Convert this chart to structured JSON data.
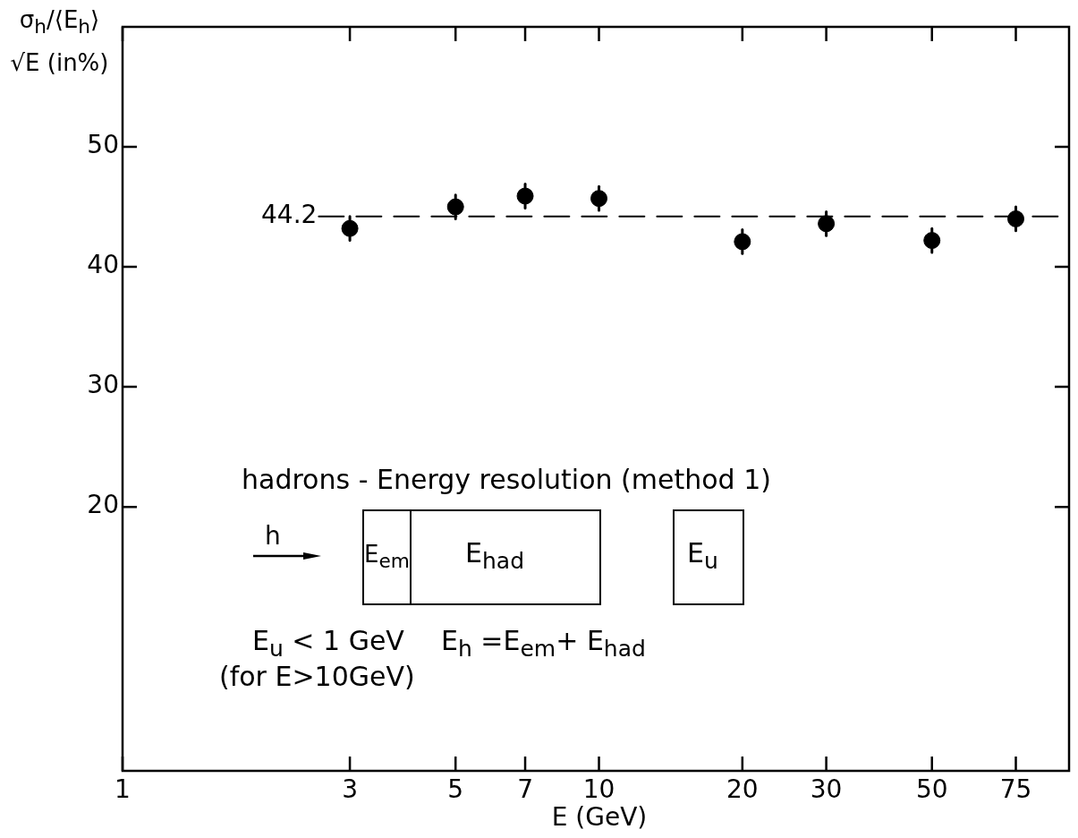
{
  "chart_data": {
    "type": "scatter",
    "xlabel": "E (GeV)",
    "ylabel": "σ$_{h}$/⟨E$_{h}$⟩ √E (in%)",
    "x": [
      3,
      5,
      7,
      10,
      20,
      30,
      50,
      75
    ],
    "values": [
      43.2,
      45.0,
      45.9,
      45.7,
      42.1,
      43.6,
      42.2,
      44.0
    ],
    "errors": [
      1,
      1,
      1,
      1,
      1,
      1,
      1,
      1
    ],
    "color": "#000000",
    "marker": "circle",
    "log": "x",
    "xlim": [
      1,
      97
    ],
    "xticks": [
      1,
      3,
      5,
      7,
      10,
      20,
      30,
      50,
      75
    ],
    "ylim": [
      -2,
      60
    ],
    "yticks": [
      20,
      30,
      40,
      50
    ],
    "ref_lines": [
      {
        "axis": "y",
        "value": 44.2,
        "label": "44.2",
        "line_style": "dashed",
        "color": "#000000"
      }
    ],
    "annotations": [
      "hadrons - Energy resolution (method 1)",
      "h",
      "E$_{em}$",
      "E$_{had}$",
      "E$_{u}$",
      "E$_{u}$ < 1 GeV",
      "(for E>10GeV)",
      "E$_{h}$ =E$_{em}$+ E$_{had}$"
    ],
    "grid": false,
    "legend": false
  }
}
